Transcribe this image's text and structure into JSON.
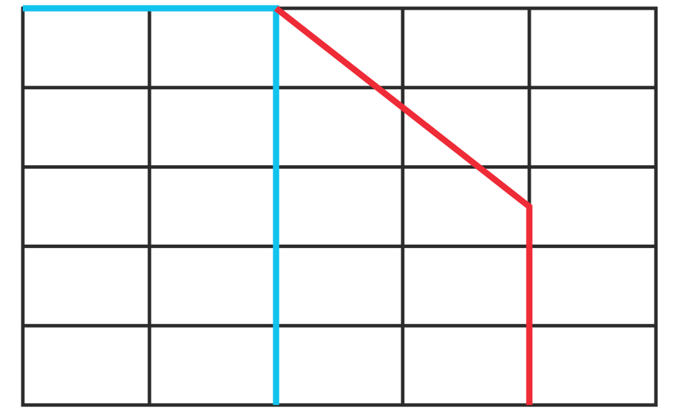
{
  "diagram": {
    "grid": {
      "columns": 5,
      "rows": 5,
      "line_color": "#2b2b2b"
    },
    "paths": [
      {
        "name": "blue-path",
        "color": "#12c3ee",
        "points": [
          [
            0,
            0
          ],
          [
            2,
            0
          ],
          [
            2,
            5
          ]
        ]
      },
      {
        "name": "red-path",
        "color": "#ee2b36",
        "points": [
          [
            2,
            0
          ],
          [
            4,
            2.5
          ],
          [
            4,
            5
          ]
        ]
      }
    ]
  }
}
